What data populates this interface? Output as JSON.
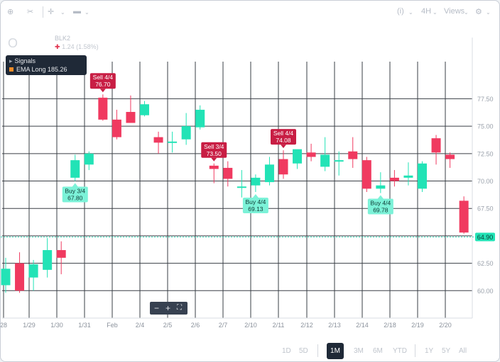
{
  "toolbar": {
    "left_icons": [
      "crosshair-icon",
      "scissors-icon",
      "plus-icon",
      "candle-type-icon"
    ],
    "right_items": [
      {
        "icon": "indicator-icon",
        "label": "(i)"
      },
      {
        "icon": "timeframe-icon",
        "label": "4H"
      },
      {
        "icon": "view-icon",
        "label": "Views"
      },
      {
        "icon": "gear-icon",
        "label": ""
      }
    ]
  },
  "symbol": {
    "name": "Ο",
    "sub1": "BLK2",
    "change_arrow": "✚",
    "change": "1.24 (1.58%)"
  },
  "signals": {
    "title": "Signals",
    "ema_label": "EMA Long 185.26",
    "ema_color": "#f28c28"
  },
  "zoom": {
    "minus": "−",
    "plus": "+",
    "fit": "⛶"
  },
  "range": {
    "group1": [
      "1D",
      "5D"
    ],
    "active": "1M",
    "group2": [
      "3M",
      "6M",
      "YTD"
    ],
    "group3": [
      "1Y",
      "5Y",
      "All"
    ]
  },
  "chart_data": {
    "type": "candlestick",
    "colors": {
      "up": "#22e3b6",
      "down": "#f03a60",
      "grid": "#3a3f46",
      "price_line": "#2fd3b0"
    },
    "x_tick_labels": [
      "28",
      "1/29",
      "1/30",
      "1/31",
      "Feb",
      "2/4",
      "2/5",
      "2/6",
      "2/7",
      "2/10",
      "2/11",
      "2/12",
      "2/13",
      "2/14",
      "2/18",
      "2/19",
      "2/20"
    ],
    "y_ticks": [
      60.0,
      62.5,
      65.0,
      67.5,
      70.0,
      72.5,
      75.0,
      77.5
    ],
    "y_tick_labels": [
      "60.00",
      "62.50",
      "65.00",
      "67.50",
      "70.00",
      "72.50",
      "75.00",
      "77.50"
    ],
    "ylim": [
      57.5,
      80.5
    ],
    "grid": true,
    "last_price": 64.9,
    "last_price_label": "64.90",
    "candles": [
      {
        "i": 0,
        "o": 60.5,
        "h": 63.0,
        "l": 59.8,
        "c": 62.0
      },
      {
        "i": 1,
        "o": 62.5,
        "h": 63.5,
        "l": 59.8,
        "c": 60.0
      },
      {
        "i": 2,
        "o": 61.2,
        "h": 62.8,
        "l": 60.0,
        "c": 62.4
      },
      {
        "i": 3,
        "o": 61.9,
        "h": 64.8,
        "l": 61.2,
        "c": 63.7
      },
      {
        "i": 4,
        "o": 63.7,
        "h": 64.5,
        "l": 61.5,
        "c": 63.0
      },
      {
        "i": 5,
        "o": 70.3,
        "h": 72.4,
        "l": 70.0,
        "c": 71.9
      },
      {
        "i": 6,
        "o": 71.5,
        "h": 72.7,
        "l": 71.0,
        "c": 72.5
      },
      {
        "i": 7,
        "o": 77.6,
        "h": 77.9,
        "l": 75.5,
        "c": 75.6
      },
      {
        "i": 8,
        "o": 75.6,
        "h": 76.5,
        "l": 73.8,
        "c": 74.0
      },
      {
        "i": 9,
        "o": 76.3,
        "h": 77.8,
        "l": 75.3,
        "c": 75.3
      },
      {
        "i": 10,
        "o": 76.0,
        "h": 77.3,
        "l": 75.9,
        "c": 77.0
      },
      {
        "i": 11,
        "o": 74.0,
        "h": 74.5,
        "l": 72.5,
        "c": 73.5
      },
      {
        "i": 12,
        "o": 73.6,
        "h": 74.5,
        "l": 72.6,
        "c": 73.6
      },
      {
        "i": 13,
        "o": 73.8,
        "h": 76.2,
        "l": 73.3,
        "c": 75.0
      },
      {
        "i": 14,
        "o": 74.9,
        "h": 76.9,
        "l": 74.7,
        "c": 76.5
      },
      {
        "i": 15,
        "o": 71.4,
        "h": 71.6,
        "l": 69.8,
        "c": 71.1
      },
      {
        "i": 16,
        "o": 71.2,
        "h": 71.8,
        "l": 69.5,
        "c": 70.2
      },
      {
        "i": 17,
        "o": 69.5,
        "h": 71.0,
        "l": 68.5,
        "c": 69.5
      },
      {
        "i": 18,
        "o": 69.6,
        "h": 70.6,
        "l": 69.0,
        "c": 70.3
      },
      {
        "i": 19,
        "o": 69.9,
        "h": 72.2,
        "l": 69.6,
        "c": 71.5
      },
      {
        "i": 20,
        "o": 72.0,
        "h": 72.8,
        "l": 70.2,
        "c": 70.6
      },
      {
        "i": 21,
        "o": 71.6,
        "h": 72.8,
        "l": 71.1,
        "c": 72.9
      },
      {
        "i": 22,
        "o": 72.6,
        "h": 73.4,
        "l": 71.8,
        "c": 72.2
      },
      {
        "i": 23,
        "o": 71.3,
        "h": 74.0,
        "l": 70.9,
        "c": 72.4
      },
      {
        "i": 24,
        "o": 71.9,
        "h": 72.7,
        "l": 70.5,
        "c": 71.9
      },
      {
        "i": 25,
        "o": 72.7,
        "h": 74.0,
        "l": 71.2,
        "c": 72.0
      },
      {
        "i": 26,
        "o": 71.9,
        "h": 72.2,
        "l": 69.0,
        "c": 69.3
      },
      {
        "i": 27,
        "o": 69.3,
        "h": 70.8,
        "l": 68.9,
        "c": 69.6
      },
      {
        "i": 28,
        "o": 70.3,
        "h": 71.0,
        "l": 69.5,
        "c": 70.0
      },
      {
        "i": 29,
        "o": 70.3,
        "h": 71.7,
        "l": 69.6,
        "c": 70.5
      },
      {
        "i": 30,
        "o": 69.3,
        "h": 71.8,
        "l": 69.0,
        "c": 71.6
      },
      {
        "i": 31,
        "o": 73.9,
        "h": 74.2,
        "l": 71.5,
        "c": 72.6
      },
      {
        "i": 32,
        "o": 72.4,
        "h": 72.6,
        "l": 71.2,
        "c": 72.0
      },
      {
        "i": 33,
        "o": 68.2,
        "h": 68.6,
        "l": 65.2,
        "c": 65.3
      }
    ],
    "annotations": [
      {
        "i": 5,
        "kind": "buy",
        "line1": "Buy 3/4",
        "line2": "67.80"
      },
      {
        "i": 7,
        "kind": "sell",
        "line1": "Sell 4/4",
        "line2": "76.70"
      },
      {
        "i": 15,
        "kind": "sell",
        "line1": "Sell 3/4",
        "line2": "73.50"
      },
      {
        "i": 18,
        "kind": "buy",
        "line1": "Buy 4/4",
        "line2": "69.13"
      },
      {
        "i": 20,
        "kind": "sell",
        "line1": "Sell 4/4",
        "line2": "74.08"
      },
      {
        "i": 27,
        "kind": "buy",
        "line1": "Buy 4/4",
        "line2": "69.78"
      }
    ]
  }
}
